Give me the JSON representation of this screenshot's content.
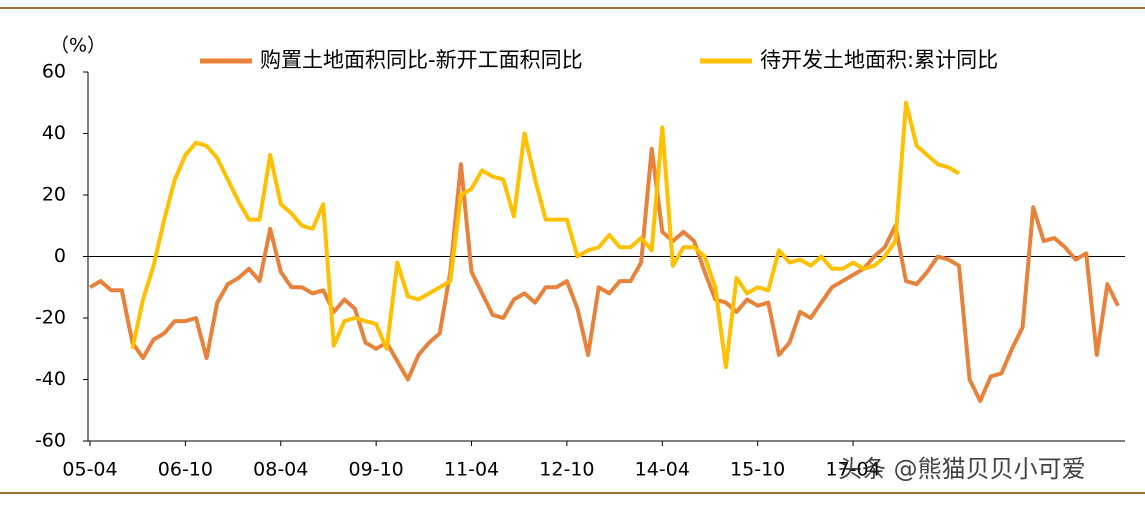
{
  "chart_data": {
    "type": "line",
    "y_unit_label": "（%）",
    "x": [
      "05-04",
      "05-06",
      "05-08",
      "05-10",
      "05-12",
      "06-02",
      "06-04",
      "06-06",
      "06-08",
      "06-10",
      "06-12",
      "07-02",
      "07-04",
      "07-06",
      "07-08",
      "07-10",
      "07-12",
      "08-02",
      "08-04",
      "08-06",
      "08-08",
      "08-10",
      "08-12",
      "09-02",
      "09-04",
      "09-06",
      "09-08",
      "09-10",
      "09-12",
      "10-02",
      "10-04",
      "10-06",
      "10-08",
      "10-10",
      "10-12",
      "11-02",
      "11-04",
      "11-06",
      "11-08",
      "11-10",
      "11-12",
      "12-02",
      "12-04",
      "12-06",
      "12-08",
      "12-10",
      "12-12",
      "13-02",
      "13-04",
      "13-06",
      "13-08",
      "13-10",
      "13-12",
      "14-02",
      "14-04",
      "14-06",
      "14-08",
      "14-10",
      "14-12",
      "15-02",
      "15-04",
      "15-06",
      "15-08",
      "15-10",
      "15-12",
      "16-02",
      "16-04",
      "16-06",
      "16-08",
      "16-10",
      "16-12",
      "17-02",
      "17-04",
      "17-06",
      "17-08",
      "17-10",
      "17-12",
      "18-02",
      "18-04",
      "18-06",
      "18-08",
      "18-10",
      "18-12",
      "19-02",
      "19-04",
      "19-06",
      "19-08",
      "19-10",
      "19-12",
      "20-02",
      "20-04",
      "20-06",
      "20-08",
      "20-10",
      "20-12",
      "21-02",
      "21-04",
      "21-06"
    ],
    "xticks": [
      "05-04",
      "06-10",
      "08-04",
      "09-10",
      "11-04",
      "12-10",
      "14-04",
      "15-10",
      "17-04"
    ],
    "series": [
      {
        "name": "购置土地面积同比-新开工面积同比",
        "color": "#E8823A",
        "values": [
          -10,
          -8,
          -11,
          -11,
          -28,
          -33,
          -27,
          -25,
          -21,
          -21,
          -20,
          -33,
          -15,
          -9,
          -7,
          -4,
          -8,
          9,
          -5,
          -10,
          -10,
          -12,
          -11,
          -18,
          -14,
          -17,
          -28,
          -30,
          -28,
          -34,
          -40,
          -32,
          -28,
          -25,
          -5,
          30,
          -5,
          -12,
          -19,
          -20,
          -14,
          -12,
          -15,
          -10,
          -10,
          -8,
          -17,
          -32,
          -10,
          -12,
          -8,
          -8,
          -2,
          35,
          8,
          5,
          8,
          5,
          -5,
          -14,
          -15,
          -18,
          -14,
          -16,
          -15,
          -32,
          -28,
          -18,
          -20,
          -15,
          -10,
          -8,
          -6,
          -4,
          0,
          3,
          10,
          -8,
          -9,
          -5,
          0,
          -1,
          -3,
          -40,
          -47,
          -39,
          -38,
          -30,
          -23,
          16,
          5,
          6,
          3,
          -1,
          1,
          -32,
          -9,
          -16
        ]
      },
      {
        "name": "待开发土地面积:累计同比",
        "color": "#FFC000",
        "values": [
          null,
          null,
          null,
          null,
          -30,
          -14,
          -3,
          12,
          25,
          33,
          37,
          36,
          32,
          25,
          18,
          12,
          12,
          33,
          17,
          14,
          10,
          9,
          17,
          -29,
          -21,
          -20,
          -21,
          -22,
          -30,
          -2,
          -13,
          -14,
          -12,
          -10,
          -8,
          20,
          22,
          28,
          26,
          25,
          13,
          40,
          25,
          12,
          12,
          12,
          0,
          2,
          3,
          7,
          3,
          3,
          6,
          2,
          42,
          -3,
          3,
          3,
          0,
          -10,
          -36,
          -7,
          -12,
          -10,
          -11,
          2,
          -2,
          -1,
          -3,
          0,
          -4,
          -4,
          -2,
          -4,
          -3,
          0,
          5,
          50,
          36,
          33,
          30,
          29,
          27,
          null,
          null,
          null,
          null,
          null,
          null,
          null,
          null,
          null,
          null,
          null,
          null,
          null,
          null,
          null
        ]
      }
    ],
    "ylim": [
      -60,
      60
    ],
    "yticks": [
      -60,
      -40,
      -20,
      0,
      20,
      40,
      60
    ],
    "grid": false,
    "legend": "top"
  },
  "watermark": "头条 @熊猫贝贝小可爱"
}
